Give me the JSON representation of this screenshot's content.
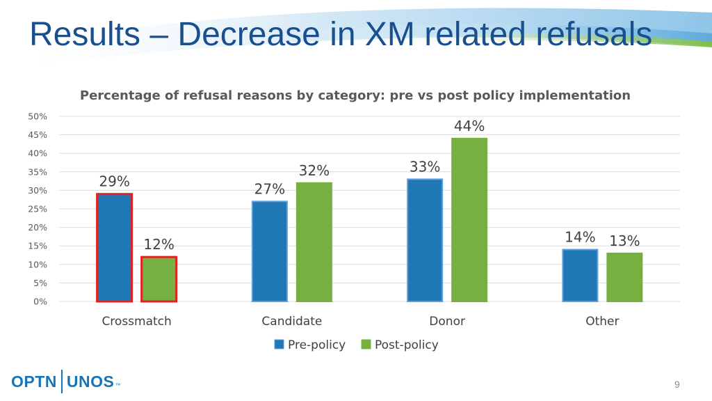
{
  "slide": {
    "title": "Results – Decrease in XM related refusals",
    "page_number": "9"
  },
  "logo": {
    "left": "OPTN",
    "right": "UNOS",
    "tm": "™"
  },
  "colors": {
    "title": "#1a4f8f",
    "pre_policy": "#1f77b4",
    "pre_policy_border": "#5aa0e0",
    "post_policy": "#76b041",
    "highlight_border": "#e32020",
    "grid": "#d9d9d9",
    "text": "#595959"
  },
  "chart_data": {
    "type": "bar",
    "title": "Percentage of refusal reasons by category: pre vs post policy implementation",
    "categories": [
      "Crossmatch",
      "Candidate",
      "Donor",
      "Other"
    ],
    "series": [
      {
        "name": "Pre-policy",
        "values": [
          29,
          27,
          33,
          14
        ],
        "labels": [
          "29%",
          "27%",
          "33%",
          "14%"
        ]
      },
      {
        "name": "Post-policy",
        "values": [
          12,
          32,
          44,
          13
        ],
        "labels": [
          "12%",
          "32%",
          "44%",
          "13%"
        ]
      }
    ],
    "highlighted_category": "Crossmatch",
    "ylim": [
      0,
      50
    ],
    "yticks": [
      "0%",
      "5%",
      "10%",
      "15%",
      "20%",
      "25%",
      "30%",
      "35%",
      "40%",
      "45%",
      "50%"
    ],
    "ytick_values": [
      0,
      5,
      10,
      15,
      20,
      25,
      30,
      35,
      40,
      45,
      50
    ],
    "grid": true,
    "legend_position": "bottom",
    "xlabel": "",
    "ylabel": ""
  }
}
